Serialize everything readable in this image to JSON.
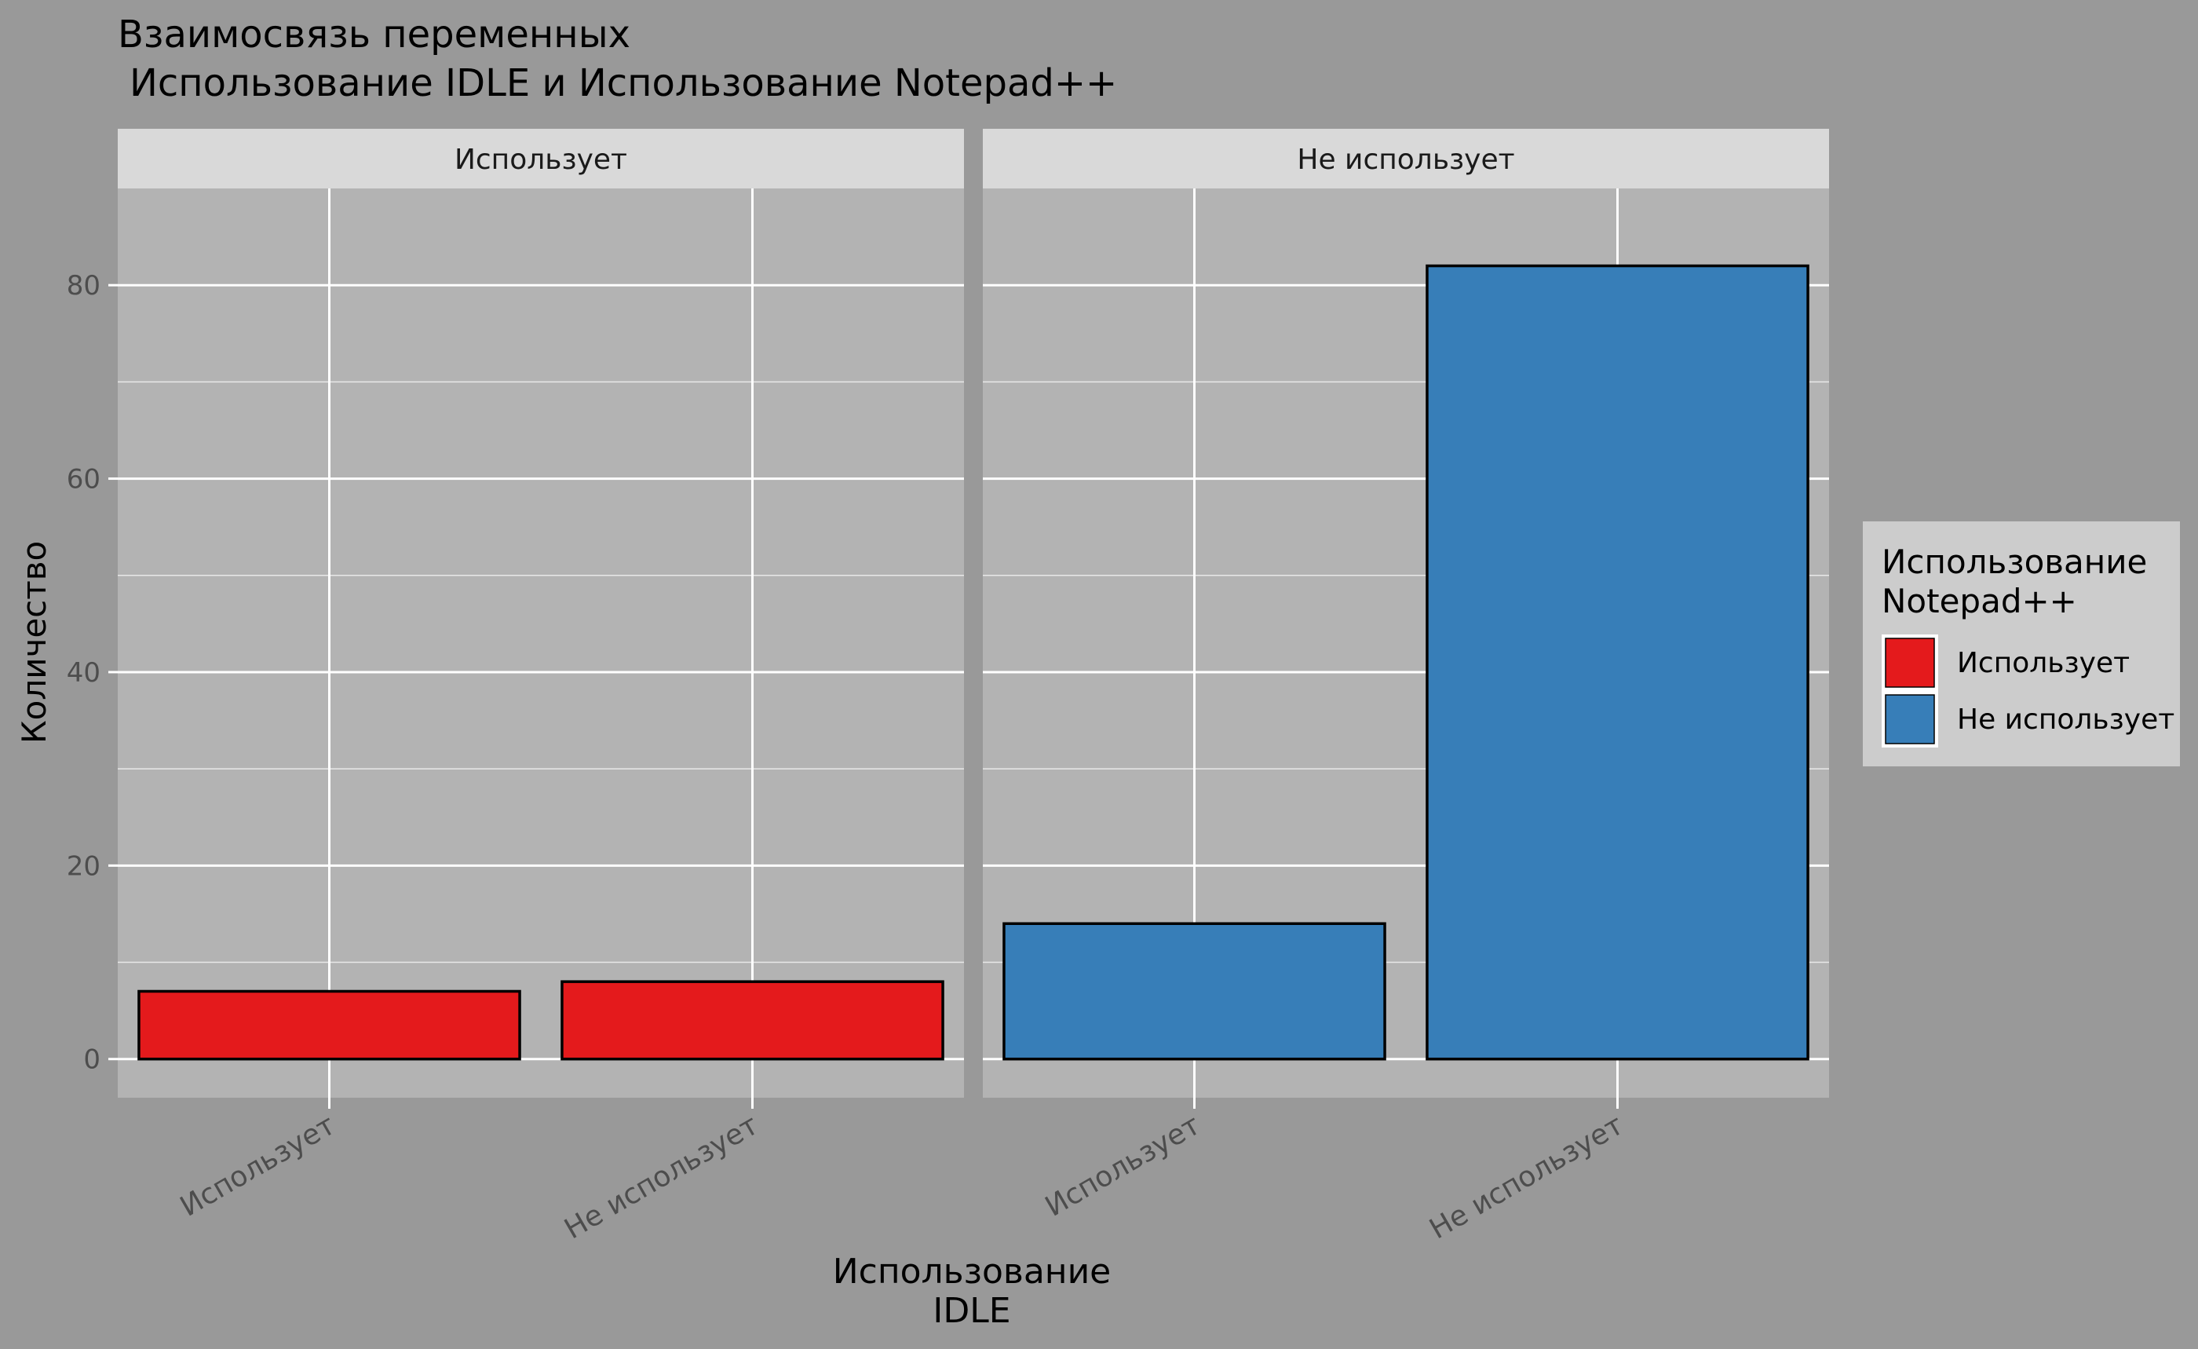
{
  "chart_data": {
    "type": "bar",
    "title_line1": "Взаимосвязь переменных",
    "title_line2": "Использование IDLE и Использование Notepad++",
    "xlabel_line1": "Использование",
    "xlabel_line2": "IDLE",
    "ylabel": "Количество",
    "ylim": [
      -4,
      90
    ],
    "y_ticks": [
      0,
      20,
      40,
      60,
      80
    ],
    "y_tick_labels": [
      "0",
      "20",
      "40",
      "60",
      "80"
    ],
    "categories": [
      "Использует",
      "Не использует"
    ],
    "facets": [
      {
        "label": "Использует",
        "fill_key": "uses",
        "values": [
          7,
          8
        ]
      },
      {
        "label": "Не использует",
        "fill_key": "not_uses",
        "values": [
          14,
          82
        ]
      }
    ],
    "legend": {
      "title_line1": "Использование",
      "title_line2": "Notepad++",
      "position": "right",
      "entries": [
        {
          "label": "Использует",
          "color": "#E41A1C"
        },
        {
          "label": "Не использует",
          "color": "#377EB8"
        }
      ]
    },
    "colors": {
      "uses": "#E41A1C",
      "not_uses": "#377EB8"
    },
    "grid": true
  }
}
